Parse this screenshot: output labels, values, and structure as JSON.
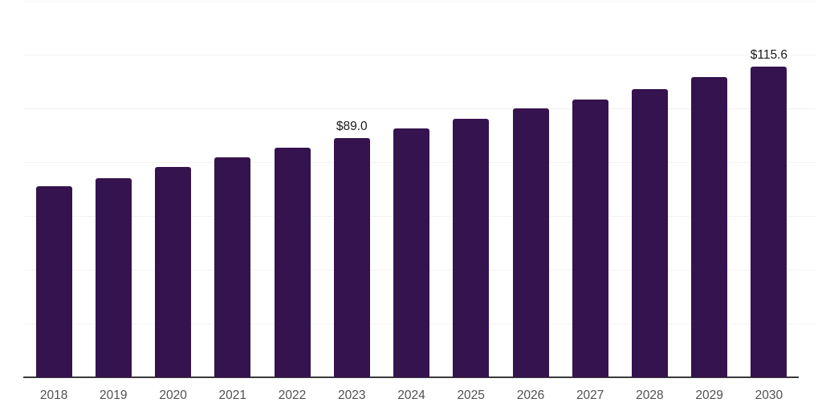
{
  "chart_data": {
    "type": "bar",
    "title": "",
    "xlabel": "",
    "ylabel": "",
    "categories": [
      "2018",
      "2019",
      "2020",
      "2021",
      "2022",
      "2023",
      "2024",
      "2025",
      "2026",
      "2027",
      "2028",
      "2029",
      "2030"
    ],
    "values": [
      71.0,
      74.0,
      78.3,
      81.9,
      85.5,
      89.0,
      92.4,
      96.0,
      99.9,
      103.4,
      107.3,
      111.5,
      115.6
    ],
    "annotations": [
      {
        "index": 5,
        "text": "$89.0"
      },
      {
        "index": 12,
        "text": "$115.6"
      }
    ],
    "ylim": [
      0,
      140
    ],
    "grid_step": 20,
    "grid": true,
    "legend": false,
    "y_axis_labels_visible": false,
    "colors": {
      "bar": "#35134e",
      "grid": "#f2f2f2",
      "axis": "#3a3a3a",
      "tick_label": "#515151",
      "value_label": "#1a1a1a",
      "background": "#ffffff"
    }
  }
}
